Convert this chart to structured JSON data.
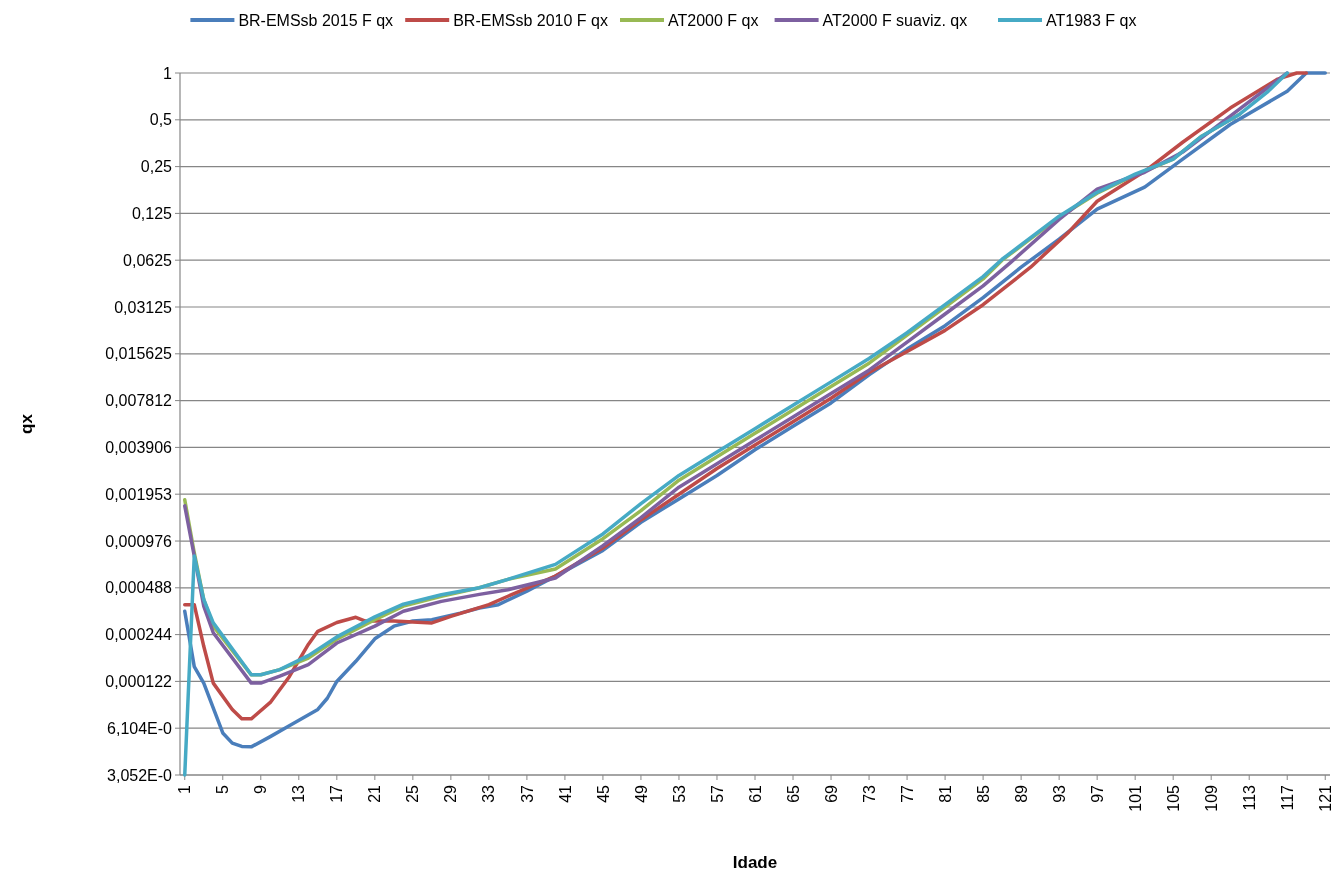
{
  "chart_data": {
    "type": "line",
    "xlabel": "Idade",
    "ylabel": "qx",
    "log": "y",
    "grid": "y",
    "legend": "top",
    "line_style": "solid",
    "marker": "none",
    "xlim": [
      0.5,
      121.5
    ],
    "xticks": [
      1,
      5,
      9,
      13,
      17,
      21,
      25,
      29,
      33,
      37,
      41,
      45,
      49,
      53,
      57,
      61,
      65,
      69,
      73,
      77,
      81,
      85,
      89,
      93,
      97,
      101,
      105,
      109,
      113,
      117,
      121
    ],
    "ylim": [
      3.0517578125e-05,
      1
    ],
    "yticks": [
      {
        "value": 1,
        "label": "1"
      },
      {
        "value": 0.5,
        "label": "0,5"
      },
      {
        "value": 0.25,
        "label": "0,25"
      },
      {
        "value": 0.125,
        "label": "0,125"
      },
      {
        "value": 0.0625,
        "label": "0,0625"
      },
      {
        "value": 0.03125,
        "label": "0,03125"
      },
      {
        "value": 0.015625,
        "label": "0,015625"
      },
      {
        "value": 0.0078125,
        "label": "0,007812"
      },
      {
        "value": 0.00390625,
        "label": "0,003906"
      },
      {
        "value": 0.001953125,
        "label": "0,001953"
      },
      {
        "value": 0.000976,
        "label": "0,000976"
      },
      {
        "value": 0.00048828125,
        "label": "0,000488"
      },
      {
        "value": 0.000244140625,
        "label": "0,000244"
      },
      {
        "value": 0.0001220703125,
        "label": "0,000122"
      },
      {
        "value": 6.103515625e-05,
        "label": "6,104E-0"
      },
      {
        "value": 3.0517578125e-05,
        "label": "3,052E-0"
      }
    ],
    "series": [
      {
        "name": "BR-EMSsb 2015 F qx",
        "color": "#4a7ebb",
        "x": [
          1,
          2,
          3,
          5,
          6,
          7,
          8,
          10,
          12,
          15,
          16,
          17,
          19,
          21,
          23,
          25,
          27,
          30,
          32,
          34,
          37,
          40,
          45,
          49,
          53,
          57,
          61,
          65,
          69,
          73,
          77,
          81,
          85,
          89,
          93,
          97,
          102,
          106,
          111,
          117,
          119,
          121
        ],
        "values": [
          0.000345,
          0.000152,
          0.000119,
          5.69e-05,
          4.89e-05,
          4.66e-05,
          4.63e-05,
          5.39e-05,
          6.32e-05,
          8.06e-05,
          9.51e-05,
          0.000122,
          0.0001645,
          0.0002294,
          0.0002766,
          0.0002985,
          0.000304,
          0.0003357,
          0.0003623,
          0.0003803,
          0.000465,
          0.0005806,
          0.00085,
          0.001289,
          0.001822,
          0.002578,
          0.003773,
          0.005336,
          0.007547,
          0.01144,
          0.01675,
          0.02369,
          0.0359,
          0.05634,
          0.08538,
          0.133,
          0.1843,
          0.2793,
          0.4665,
          0.763,
          1,
          1
        ]
      },
      {
        "name": "BR-EMSsb 2010 F qx",
        "color": "#be4b48",
        "x": [
          1,
          2,
          3,
          4,
          6,
          7,
          8,
          10,
          12,
          14,
          15,
          17,
          19,
          20,
          23,
          27,
          29,
          33,
          35,
          40,
          45,
          49,
          53,
          57,
          61,
          65,
          69,
          73,
          77,
          81,
          85,
          90,
          94,
          97,
          102,
          106,
          111,
          116,
          118,
          119
        ],
        "values": [
          0.0003803,
          0.0003803,
          0.0002054,
          0.000119,
          8.06e-05,
          7.01e-05,
          7.01e-05,
          8.94e-05,
          0.0001309,
          0.0002111,
          0.0002563,
          0.0002922,
          0.0003154,
          0.0002985,
          0.0002985,
          0.0002903,
          0.0003198,
          0.0003803,
          0.0004309,
          0.0005806,
          0.0008804,
          0.001334,
          0.001953,
          0.002859,
          0.004043,
          0.005719,
          0.008086,
          0.01184,
          0.01617,
          0.0221,
          0.03234,
          0.05634,
          0.09475,
          0.1496,
          0.2333,
          0.3585,
          0.5945,
          0.914,
          1,
          1
        ]
      },
      {
        "name": "AT2000 F qx",
        "color": "#98b954",
        "x": [
          1,
          2,
          3,
          4,
          8,
          9,
          11,
          14,
          17,
          21,
          24,
          28,
          32,
          35,
          40,
          45,
          49,
          53,
          57,
          61,
          65,
          69,
          73,
          77,
          81,
          85,
          87,
          93,
          97,
          101,
          105,
          108,
          112
        ],
        "values": [
          0.001797,
          0.0008213,
          0.0004106,
          0.0002766,
          0.0001346,
          0.0001346,
          0.0001452,
          0.0001726,
          0.0002278,
          0.000304,
          0.0003725,
          0.0004309,
          0.0004883,
          0.0005532,
          0.0006446,
          0.001011,
          0.001532,
          0.002404,
          0.0034,
          0.004809,
          0.006801,
          0.009617,
          0.0136,
          0.02063,
          0.03125,
          0.04738,
          0.0625,
          0.1183,
          0.1684,
          0.2206,
          0.2793,
          0.3923,
          0.5435
        ]
      },
      {
        "name": "AT2000 F suaviz. qx",
        "color": "#7d60a0",
        "x": [
          1,
          2,
          3,
          4,
          8,
          9,
          11,
          14,
          17,
          21,
          24,
          28,
          32,
          35,
          40,
          45,
          49,
          53,
          57,
          61,
          65,
          69,
          73,
          77,
          81,
          85,
          88,
          93,
          97,
          102,
          106,
          111,
          117
        ],
        "values": [
          0.001643,
          0.0007823,
          0.0003725,
          0.000251,
          0.000119,
          0.000119,
          0.0001318,
          0.0001567,
          0.0002155,
          0.0002766,
          0.0003453,
          0.0003994,
          0.0004431,
          0.0004749,
          0.000565,
          0.0009112,
          0.001381,
          0.002168,
          0.003064,
          0.004336,
          0.006129,
          0.008672,
          0.01226,
          0.01858,
          0.02817,
          0.04269,
          0.06122,
          0.1143,
          0.1793,
          0.23,
          0.31,
          0.5285,
          1
        ]
      },
      {
        "name": "AT1983 F qx",
        "color": "#46aac5",
        "x": [
          1,
          2,
          3,
          4,
          8,
          9,
          11,
          14,
          17,
          21,
          24,
          28,
          32,
          35,
          40,
          45,
          49,
          53,
          57,
          61,
          65,
          69,
          73,
          77,
          81,
          85,
          87,
          93,
          97,
          101,
          105,
          108,
          112,
          115,
          117
        ],
        "values": [
          3.052e-05,
          0.0007823,
          0.0004106,
          0.0002903,
          0.0001346,
          0.0001346,
          0.0001452,
          0.0001788,
          0.0002359,
          0.0003176,
          0.000383,
          0.0004401,
          0.0004883,
          0.0005532,
          0.0006906,
          0.001084,
          0.0017,
          0.002578,
          0.003644,
          0.005156,
          0.007289,
          0.01031,
          0.01458,
          0.02134,
          0.03234,
          0.04903,
          0.06338,
          0.1199,
          0.1708,
          0.2238,
          0.2793,
          0.3923,
          0.5435,
          0.763,
          1
        ]
      }
    ]
  }
}
